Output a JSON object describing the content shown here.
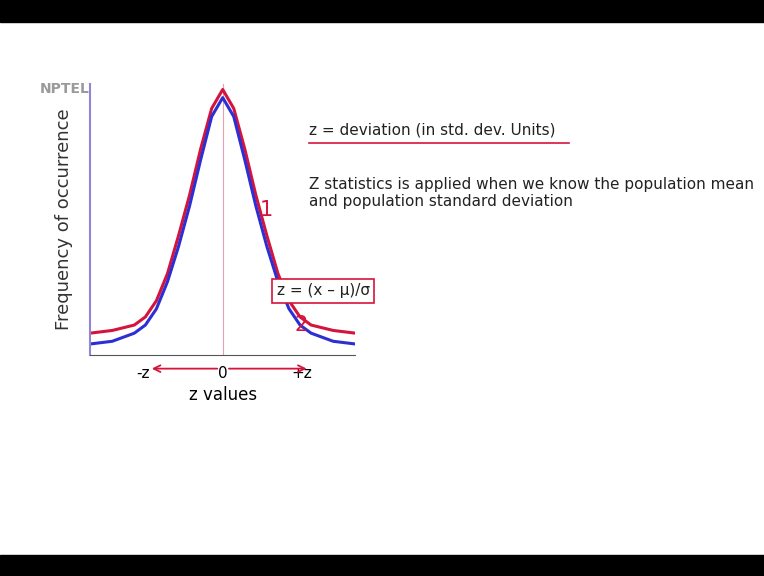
{
  "chart_data": {
    "type": "line",
    "xlabel": "z values",
    "ylabel": "Frequency of occurrence",
    "x": [
      -3,
      -2.5,
      -2,
      -1.75,
      -1.5,
      -1.25,
      -1,
      -0.75,
      -0.5,
      -0.25,
      0,
      0.25,
      0.5,
      0.75,
      1,
      1.25,
      1.5,
      1.75,
      2,
      2.5,
      3
    ],
    "series": [
      {
        "color": "#d4143c",
        "values": [
          8,
          9,
          11,
          14,
          20,
          30,
          44,
          59,
          76,
          91,
          98,
          91,
          76,
          59,
          44,
          30,
          20,
          14,
          11,
          9,
          8
        ]
      },
      {
        "color": "#2b2fd4",
        "values": [
          4,
          5,
          8,
          11,
          17,
          27,
          40,
          55,
          72,
          88,
          95,
          88,
          72,
          55,
          40,
          27,
          17,
          11,
          8,
          5,
          4
        ]
      }
    ],
    "xlim": [
      -3,
      3
    ],
    "xticks": [
      {
        "value": -1.8,
        "label": "-z"
      },
      0,
      {
        "value": 1.8,
        "label": "+z"
      }
    ],
    "ylim": [
      0,
      100
    ],
    "yticks": [],
    "tick_labels": "x",
    "annotations": [
      "NPTEL",
      "z = deviation (in std. dev. Units)",
      "Z statistics is applied when we know the population mean and population standard deviation",
      "z = (x – μ)/σ",
      "1",
      "2"
    ]
  }
}
